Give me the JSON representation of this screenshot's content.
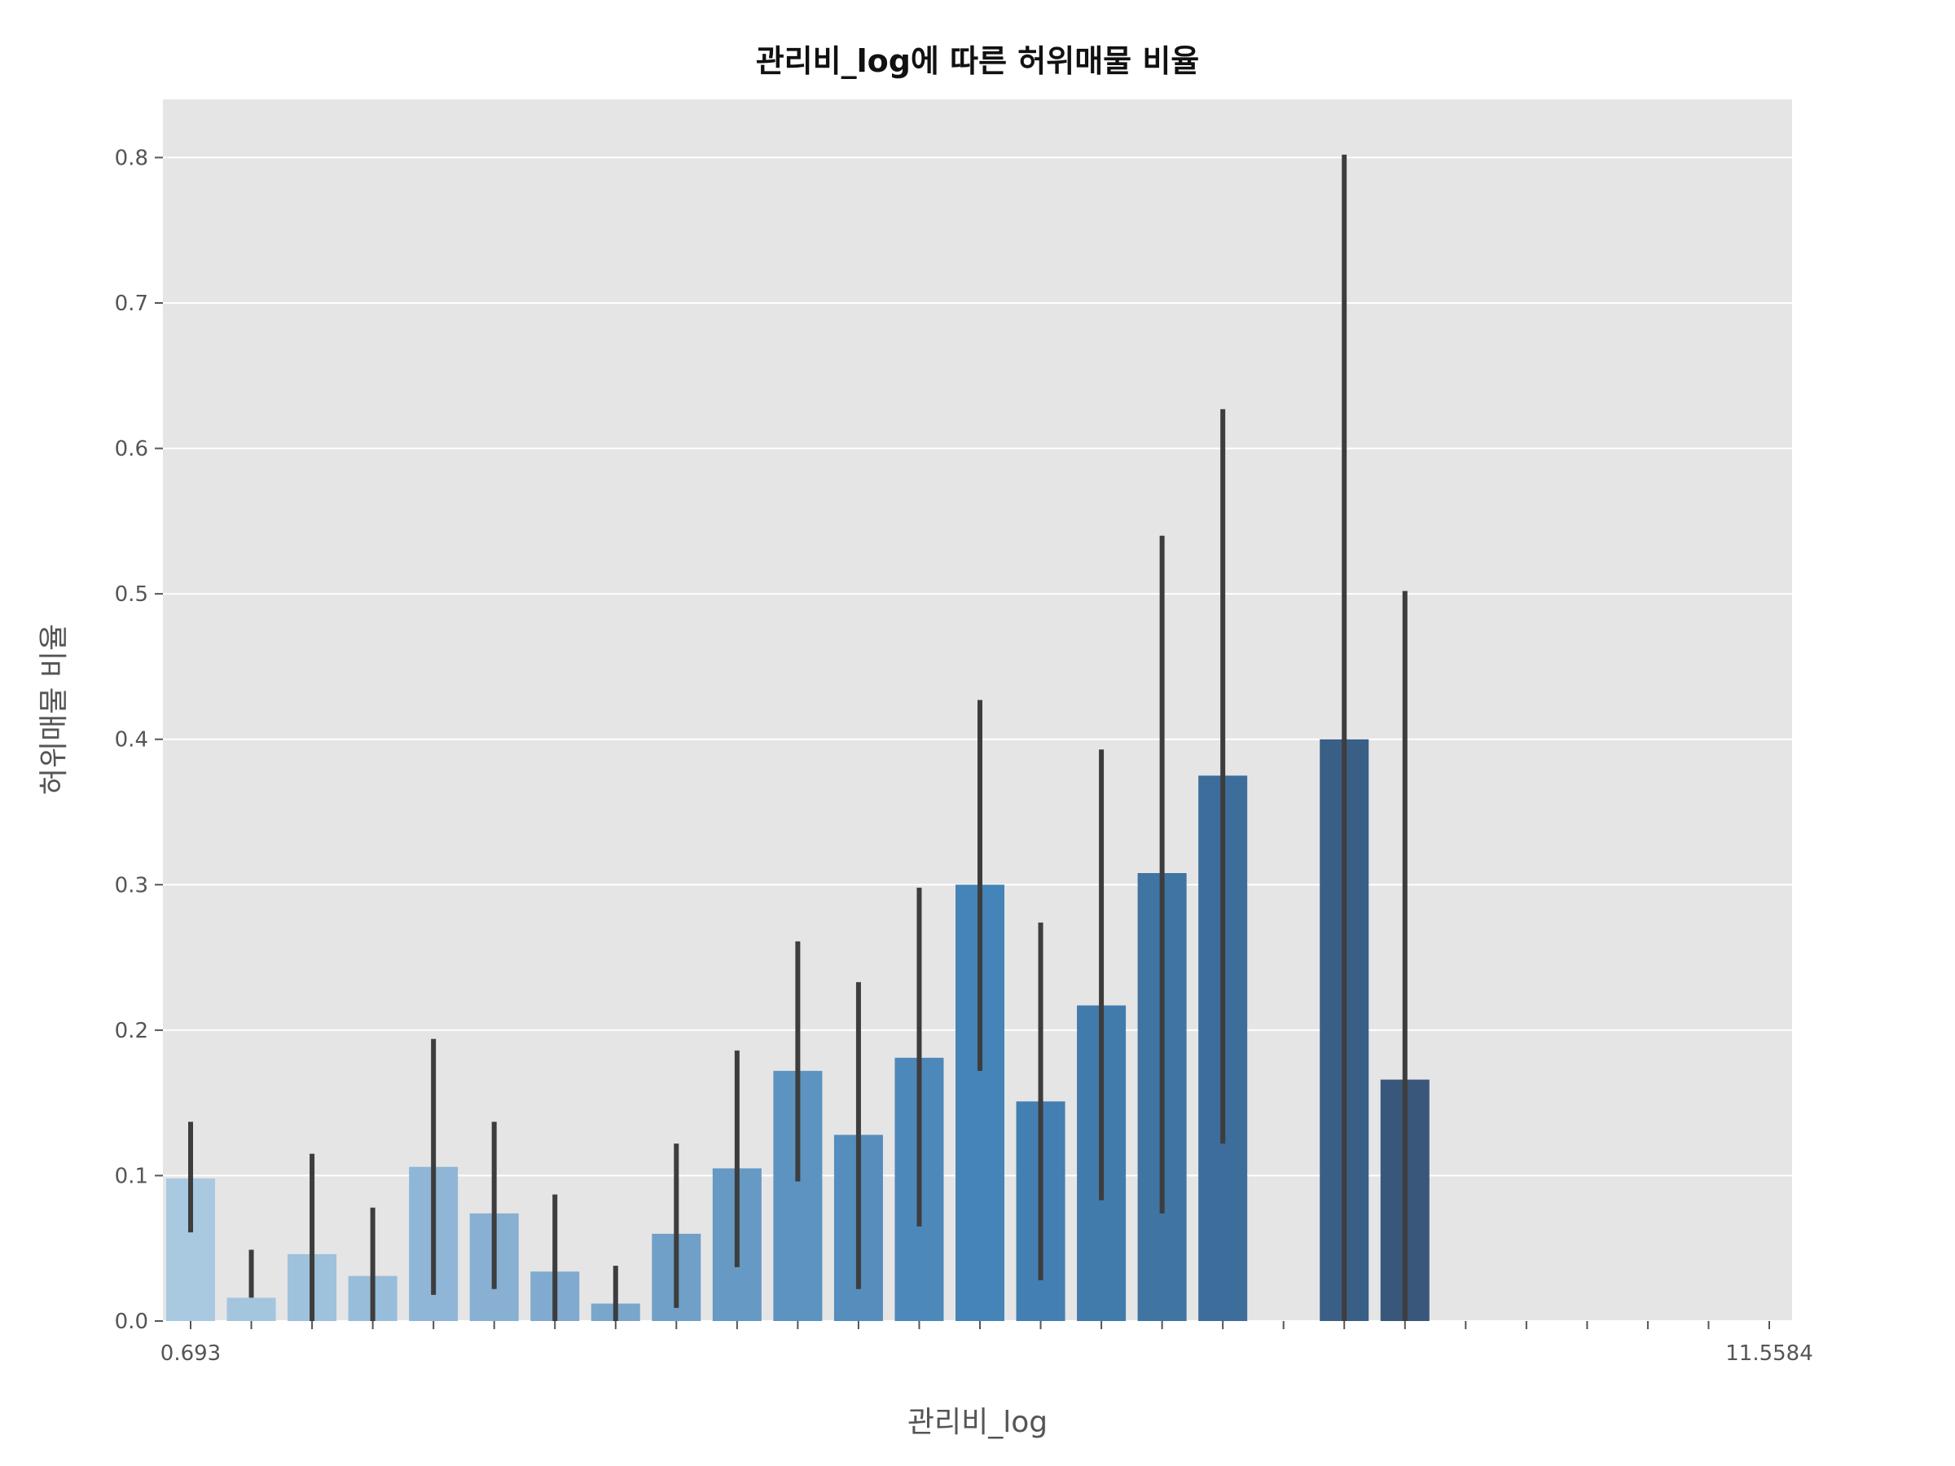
{
  "chart_data": {
    "type": "bar",
    "title": "관리비_log에 따른 허위매물 비율",
    "xlabel": "관리비_log",
    "ylabel": "허위매물 비율",
    "ylim": [
      0,
      0.84
    ],
    "yticks": [
      "0.0",
      "0.1",
      "0.2",
      "0.3",
      "0.4",
      "0.5",
      "0.6",
      "0.7",
      "0.8"
    ],
    "grid": true,
    "first_x_tick_label": "0.693",
    "last_x_tick_label": "11.5584",
    "values": [
      0.098,
      0.016,
      0.046,
      0.031,
      0.106,
      0.074,
      0.034,
      0.012,
      0.06,
      0.105,
      0.172,
      0.128,
      0.181,
      0.3,
      0.151,
      0.217,
      0.308,
      0.375,
      null,
      0.4,
      0.166,
      null,
      null,
      null,
      null,
      null,
      null
    ],
    "error_low": [
      0.061,
      null,
      0,
      0,
      0.018,
      0.022,
      0,
      0,
      0.009,
      0.037,
      0.096,
      0.022,
      0.065,
      0.172,
      0.028,
      0.083,
      0.074,
      0.122,
      null,
      0,
      0,
      null,
      null,
      null,
      null,
      null,
      null
    ],
    "error_high": [
      0.137,
      0.049,
      0.115,
      0.078,
      0.194,
      0.137,
      0.087,
      0.038,
      0.122,
      0.186,
      0.261,
      0.233,
      0.298,
      0.427,
      0.274,
      0.393,
      0.54,
      0.627,
      null,
      0.802,
      0.502,
      null,
      null,
      null,
      null,
      null,
      null
    ],
    "colors": [
      "#a8c9e0",
      "#a3c5de",
      "#9ec1dc",
      "#98bdda",
      "#8fb6d6",
      "#87b0d2",
      "#80aacf",
      "#7aa6cc",
      "#70a0c8",
      "#6699c4",
      "#5d93c0",
      "#558dbd",
      "#4d88ba",
      "#4484b8",
      "#437fb2",
      "#417bac",
      "#3f74a3",
      "#3d6d9a",
      "#3b6690",
      "#3a5f86",
      "#38577b",
      "#375071",
      "#354a68",
      "#34445f",
      "#333e56",
      "#31384d",
      "#303244"
    ]
  }
}
